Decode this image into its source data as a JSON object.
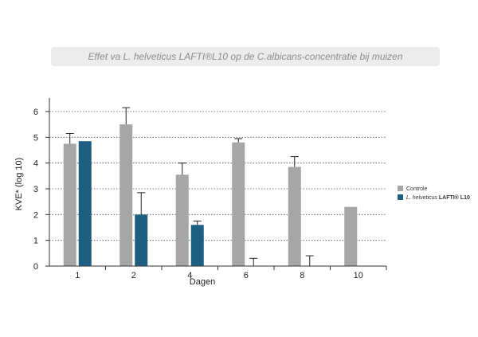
{
  "chart_data": {
    "type": "bar",
    "title": "Effet va L. helveticus LAFTI®L10 op de C.albicans-concentratie bij muizen",
    "xlabel": "Dagen",
    "ylabel": "KVE* (log 10)",
    "categories": [
      "1",
      "2",
      "4",
      "6",
      "8",
      "10"
    ],
    "ylim": [
      0,
      6.5
    ],
    "yticks": [
      "0",
      "1",
      "2",
      "3",
      "4",
      "5",
      "6"
    ],
    "grid": "horizontal-dotted",
    "legend_position": "right",
    "series": [
      {
        "name": "Controle",
        "legend_text": "Controle",
        "color": "#a6a6a6",
        "values": [
          4.75,
          5.5,
          3.55,
          4.8,
          3.85,
          2.3
        ],
        "errors": [
          0.4,
          0.65,
          0.45,
          0.15,
          0.4,
          null
        ]
      },
      {
        "name": "L. helveticus LAFTI® L10",
        "legend_italic": "L. helveticus ",
        "legend_bold": "LAFTI® L10",
        "color": "#1d5f80",
        "values": [
          4.85,
          2.0,
          1.6,
          0,
          0,
          null
        ],
        "errors": [
          null,
          0.85,
          0.15,
          0.3,
          0.4,
          null
        ]
      }
    ]
  }
}
